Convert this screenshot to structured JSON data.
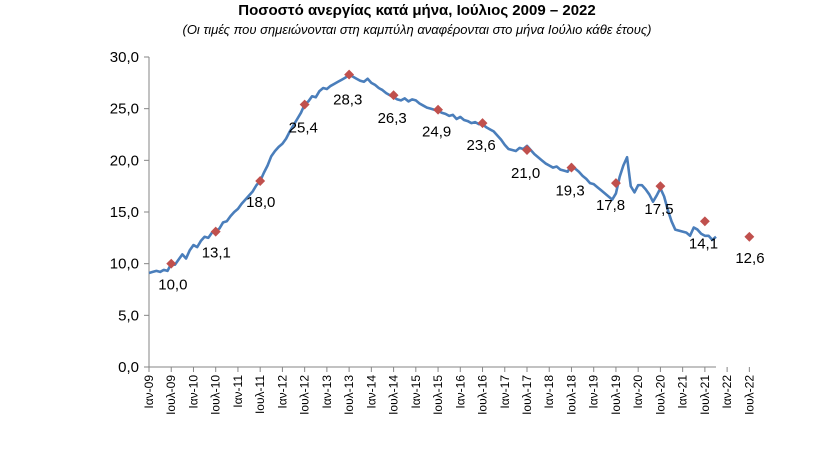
{
  "chart_data": {
    "type": "line",
    "title": "Ποσοστό ανεργίας κατά μήνα, Ιούλιος 2009 – 2022",
    "subtitle": "(Οι τιμές που σημειώνονται στη καμπύλη αναφέρονται στο μήνα Ιούλιο κάθε έτους)",
    "xlabel": "",
    "ylabel": "",
    "ylim": [
      0,
      30
    ],
    "yticks": [
      "0,0",
      "5,0",
      "10,0",
      "15,0",
      "20,0",
      "25,0",
      "30,0"
    ],
    "xtick_labels": [
      "Ιαν-09",
      "Ιουλ-09",
      "Ιαν-10",
      "Ιουλ-10",
      "Ιαν-11",
      "Ιουλ-11",
      "Ιαν-12",
      "Ιουλ-12",
      "Ιαν-13",
      "Ιουλ-13",
      "Ιαν-14",
      "Ιουλ-14",
      "Ιαν-15",
      "Ιουλ-15",
      "Ιαν-16",
      "Ιουλ-16",
      "Ιαν-17",
      "Ιουλ-17",
      "Ιαν-18",
      "Ιουλ-18",
      "Ιαν-19",
      "Ιουλ-19",
      "Ιαν-20",
      "Ιουλ-20",
      "Ιαν-21",
      "Ιουλ-21",
      "Ιαν-22",
      "Ιουλ-22"
    ],
    "grid": false,
    "legend": "none",
    "line_color": "#4a7ebb",
    "marker_color": "#c0504d",
    "series": [
      {
        "values": [
          9.1,
          9.2,
          9.3,
          9.2,
          9.4,
          9.3,
          10.0,
          9.9,
          10.4,
          10.9,
          10.5,
          11.3,
          11.8,
          11.6,
          12.2,
          12.6,
          12.5,
          13.0,
          13.1,
          13.4,
          14.0,
          14.1,
          14.6,
          15.0,
          15.3,
          15.8,
          16.2,
          16.6,
          17.0,
          17.6,
          18.0,
          18.8,
          19.5,
          20.4,
          20.9,
          21.3,
          21.6,
          22.1,
          22.8,
          23.4,
          24.0,
          24.6,
          25.4,
          25.7,
          26.2,
          26.1,
          26.7,
          27.0,
          26.9,
          27.2,
          27.4,
          27.6,
          27.8,
          28.0,
          28.3,
          28.1,
          27.9,
          27.7,
          27.6,
          27.9,
          27.5,
          27.3,
          27.0,
          26.8,
          26.5,
          26.3,
          26.1,
          25.9,
          25.8,
          26.0,
          25.7,
          25.9,
          25.8,
          25.5,
          25.3,
          25.1,
          25.0,
          24.9,
          24.8,
          24.6,
          24.5,
          24.3,
          24.4,
          24.0,
          24.2,
          23.9,
          23.8,
          23.6,
          23.7,
          23.5,
          23.5,
          23.2,
          23.0,
          22.8,
          22.4,
          22.0,
          21.5,
          21.1,
          21.0,
          20.9,
          21.2,
          21.1,
          21.4,
          21.0,
          20.6,
          20.3,
          20.0,
          19.7,
          19.5,
          19.3,
          19.4,
          19.1,
          19.0,
          18.9,
          19.6,
          19.2,
          18.9,
          18.5,
          18.2,
          17.8,
          17.7,
          17.4,
          17.1,
          16.8,
          16.5,
          16.2,
          16.8,
          18.4,
          19.5,
          20.3,
          17.5,
          16.9,
          17.6,
          17.6,
          17.2,
          16.7,
          16.0,
          16.6,
          17.3,
          16.5,
          15.2,
          14.1,
          13.3,
          13.2,
          13.1,
          13.0,
          12.7,
          13.5,
          13.3,
          12.9,
          12.7,
          12.7,
          12.3,
          12.6
        ]
      }
    ],
    "july_markers": [
      {
        "label": "10,0",
        "value": 10.0
      },
      {
        "label": "13,1",
        "value": 13.1
      },
      {
        "label": "18,0",
        "value": 18.0
      },
      {
        "label": "25,4",
        "value": 25.4
      },
      {
        "label": "28,3",
        "value": 28.3
      },
      {
        "label": "26,3",
        "value": 26.3
      },
      {
        "label": "24,9",
        "value": 24.9
      },
      {
        "label": "23,6",
        "value": 23.6
      },
      {
        "label": "21,0",
        "value": 21.0
      },
      {
        "label": "19,3",
        "value": 19.3
      },
      {
        "label": "17,8",
        "value": 17.8
      },
      {
        "label": "17,5",
        "value": 17.5
      },
      {
        "label": "14,1",
        "value": 14.1
      },
      {
        "label": "12,6",
        "value": 12.6
      }
    ]
  }
}
